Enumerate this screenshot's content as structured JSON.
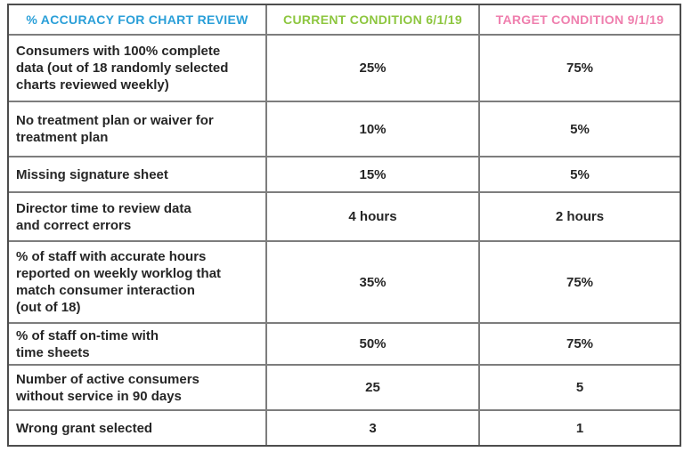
{
  "table": {
    "headers": [
      {
        "label": "% ACCURACY FOR CHART REVIEW",
        "color": "#2a9fd8"
      },
      {
        "label": "CURRENT CONDITION 6/1/19",
        "color": "#8dc63f"
      },
      {
        "label": "TARGET CONDITION 9/1/19",
        "color": "#ef7fae"
      }
    ],
    "rows": [
      {
        "label": "Consumers with 100% complete\ndata (out of 18 randomly selected\ncharts reviewed weekly)",
        "current": "25%",
        "target": "75%"
      },
      {
        "label": "No treatment plan or waiver for\ntreatment plan",
        "current": "10%",
        "target": "5%"
      },
      {
        "label": "Missing signature sheet",
        "current": "15%",
        "target": "5%"
      },
      {
        "label": "Director time to review data\nand correct errors",
        "current": "4 hours",
        "target": "2 hours"
      },
      {
        "label": "% of staff with accurate hours\nreported on weekly worklog that\nmatch consumer interaction\n(out of 18)",
        "current": "35%",
        "target": "75%"
      },
      {
        "label": "% of staff on-time with\ntime sheets",
        "current": "50%",
        "target": "75%"
      },
      {
        "label": "Number of active consumers\nwithout service in 90 days",
        "current": "25",
        "target": "5"
      },
      {
        "label": "Wrong grant selected",
        "current": "3",
        "target": "1"
      }
    ]
  },
  "colors": {
    "header_blue": "#2a9fd8",
    "header_green": "#8dc63f",
    "header_pink": "#ef7fae",
    "body_text": "#262626",
    "grid_line": "#7d7d7d",
    "outer_border": "#4d4d4d",
    "background": "#ffffff"
  }
}
